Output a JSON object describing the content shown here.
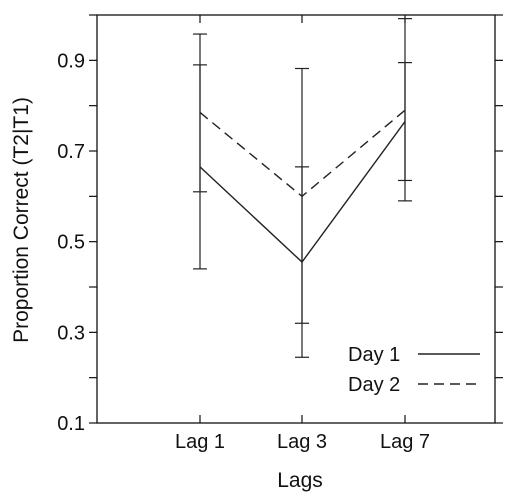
{
  "chart_data": {
    "type": "line",
    "title": "",
    "xlabel": "Lags",
    "ylabel": "Proportion Correct (T2|T1)",
    "categories": [
      "Lag 1",
      "Lag 3",
      "Lag 7"
    ],
    "ylim": [
      0.1,
      1.0
    ],
    "yticks": [
      0.1,
      0.3,
      0.5,
      0.7,
      0.9
    ],
    "yticks_minor": [
      0.2,
      0.4,
      0.6,
      0.8,
      1.0
    ],
    "grid": false,
    "legend": "bottom-right",
    "series": [
      {
        "name": "Day 1",
        "style": "solid",
        "values": [
          0.665,
          0.455,
          0.765
        ],
        "err_low": [
          0.44,
          0.245,
          0.59
        ],
        "err_high": [
          0.89,
          0.665,
          0.895
        ]
      },
      {
        "name": "Day 2",
        "style": "dashed",
        "values": [
          0.785,
          0.6,
          0.79
        ],
        "err_low": [
          0.61,
          0.32,
          0.635
        ],
        "err_high": [
          0.958,
          0.882,
          0.992
        ]
      }
    ]
  },
  "colors": {
    "line": "#222222",
    "axis": "#111111"
  }
}
